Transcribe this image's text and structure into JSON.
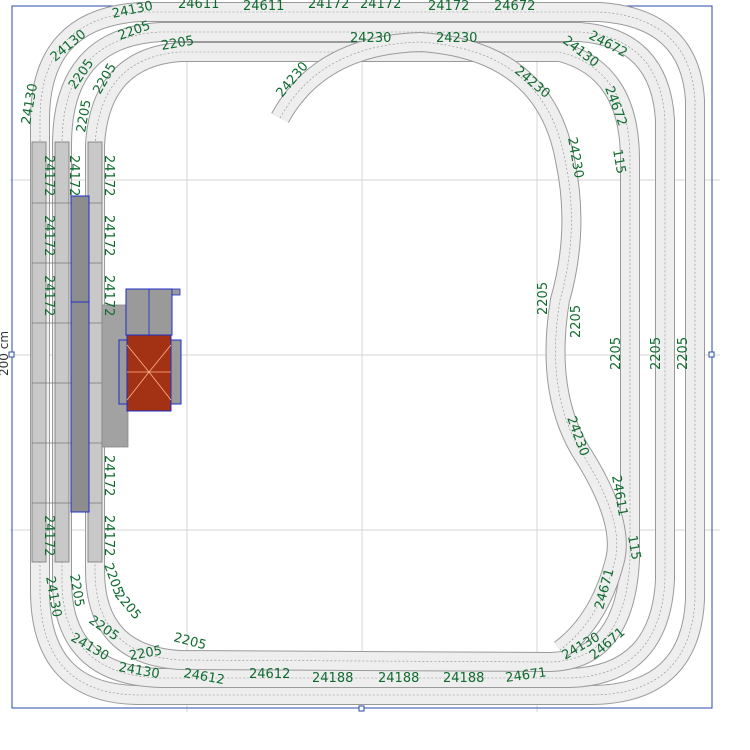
{
  "diagram": {
    "dimension_label": "200 cm",
    "colors": {
      "label": "#0e6b2e",
      "track_fill": "#eeeeee",
      "track_edge": "#9a9a9a",
      "grid": "#d4d4d4",
      "frame": "#2a4aa8",
      "platform": "#9e9e9e",
      "building_outline": "#1a2ec8",
      "turntable": "#a33214"
    },
    "labels": {
      "t1": "24130",
      "t2": "24611",
      "t3": "24611",
      "t4": "24172",
      "t5": "24172",
      "t6": "24172",
      "t7": "24672",
      "t8": "24130",
      "t9": "2205",
      "t10": "2205",
      "t11": "24230",
      "t12": "24230",
      "t13": "24672",
      "t14": "24130",
      "t15": "2205",
      "t16": "2205",
      "t17": "24230",
      "t18": "24230",
      "t19": "24672",
      "t20": "24130",
      "t21": "2205",
      "t22": "24230",
      "t23": "115",
      "t24": "24172",
      "t25": "24172",
      "t26": "24172",
      "t27": "24172",
      "t28": "24172",
      "t29": "24172",
      "t30": "24172",
      "t31": "24172",
      "t32": "24172",
      "t33": "24172",
      "t34": "2205",
      "t35": "2205",
      "t36": "2205",
      "t37": "2205",
      "t38": "2205",
      "t39": "24230",
      "t40": "24611",
      "t41": "115",
      "t42": "24130",
      "t43": "2205",
      "t44": "2205",
      "t45": "2205",
      "t46": "2205",
      "t47": "2205",
      "t48": "24130",
      "t49": "2205",
      "t50": "24130",
      "t51": "2205",
      "t52": "24612",
      "t53": "24612",
      "t54": "24188",
      "t55": "24188",
      "t56": "24188",
      "t57": "24671",
      "t58": "24671",
      "t59": "24130",
      "t60": "24671",
      "t61": "24130"
    }
  }
}
